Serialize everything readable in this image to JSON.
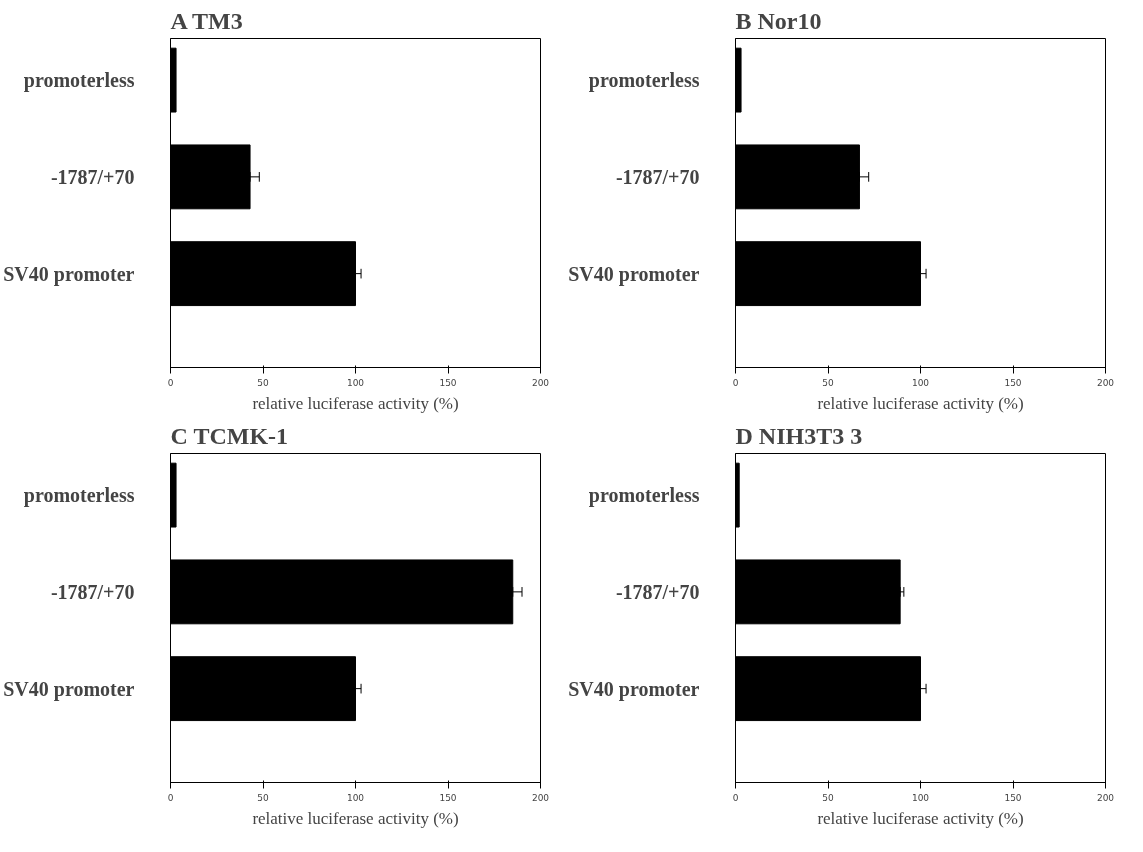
{
  "chart_data": [
    {
      "type": "bar",
      "orientation": "horizontal",
      "title": "A  TM3",
      "xlabel": "relative luciferase activity (%)",
      "categories": [
        "promoterless",
        "-1787/+70",
        "SV40 promoter"
      ],
      "values": [
        3,
        43,
        100
      ],
      "errors": [
        null,
        [
          43,
          48
        ],
        [
          100,
          103
        ]
      ],
      "color": "#000000",
      "xlim": [
        0,
        200
      ],
      "xticks": [
        0,
        50,
        100,
        150,
        200
      ],
      "grid": false
    },
    {
      "type": "bar",
      "orientation": "horizontal",
      "title": "B  Nor10",
      "xlabel": "relative luciferase activity (%)",
      "categories": [
        "promoterless",
        "-1787/+70",
        "SV40 promoter"
      ],
      "values": [
        3,
        67,
        100
      ],
      "errors": [
        null,
        [
          67,
          72
        ],
        [
          100,
          103
        ]
      ],
      "color": "#000000",
      "xlim": [
        0,
        200
      ],
      "xticks": [
        0,
        50,
        100,
        150,
        200
      ],
      "grid": false
    },
    {
      "type": "bar",
      "orientation": "horizontal",
      "title": "C  TCMK-1",
      "xlabel": "relative luciferase activity (%)",
      "categories": [
        "promoterless",
        "-1787/+70",
        "SV40 promoter"
      ],
      "values": [
        3,
        185,
        100
      ],
      "errors": [
        null,
        [
          185,
          190
        ],
        [
          100,
          103
        ]
      ],
      "color": "#000000",
      "xlim": [
        0,
        200
      ],
      "xticks": [
        0,
        50,
        100,
        150,
        200
      ],
      "grid": false
    },
    {
      "type": "bar",
      "orientation": "horizontal",
      "title": "D  NIH3T3 3",
      "xlabel": "relative luciferase activity (%)",
      "categories": [
        "promoterless",
        "-1787/+70",
        "SV40 promoter"
      ],
      "values": [
        2,
        89,
        100
      ],
      "errors": [
        null,
        [
          89,
          91
        ],
        [
          100,
          103
        ]
      ],
      "color": "#000000",
      "xlim": [
        0,
        200
      ],
      "xticks": [
        0,
        50,
        100,
        150,
        200
      ],
      "grid": false
    }
  ]
}
